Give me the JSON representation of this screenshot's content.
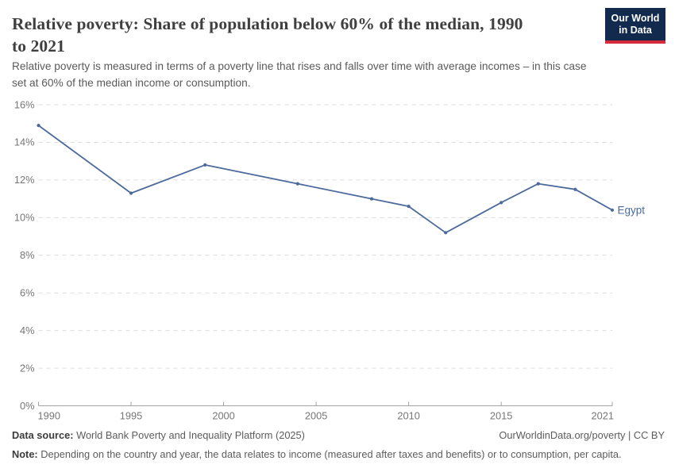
{
  "header": {
    "title_lines": [
      "Relative poverty: Share of population below 60% of the median, 1990",
      "to 2021"
    ],
    "subtitle_lines": [
      "Relative poverty is measured in terms of a poverty line that rises and falls over time with average incomes – in this case",
      "set at 60% of the median income or consumption."
    ],
    "logo_lines": [
      "Our World",
      "in Data"
    ]
  },
  "chart_data": {
    "type": "line",
    "title": "Relative poverty: Share of population below 60% of the median, 1990 to 2021",
    "series": [
      {
        "name": "Egypt",
        "color": "#4C6A9C",
        "x": [
          1990,
          1995,
          1999,
          2004,
          2008,
          2010,
          2012,
          2015,
          2017,
          2019,
          2021
        ],
        "values": [
          14.9,
          11.3,
          12.8,
          11.8,
          11.0,
          10.6,
          9.2,
          10.8,
          11.8,
          11.5,
          10.4
        ]
      }
    ],
    "xlabel": "",
    "ylabel": "",
    "xlim": [
      1990,
      2021
    ],
    "ylim": [
      0,
      16
    ],
    "x_ticks": [
      1990,
      1995,
      2000,
      2005,
      2010,
      2015,
      2021
    ],
    "y_ticks": [
      "0%",
      "2%",
      "4%",
      "6%",
      "8%",
      "10%",
      "12%",
      "14%",
      "16%"
    ],
    "grid": "horizontal-dashed",
    "legend_position": "line-end-label"
  },
  "footer": {
    "datasource_label": "Data source:",
    "datasource_text": "World Bank Poverty and Inequality Platform (2025)",
    "license_text": "OurWorldinData.org/poverty | CC BY",
    "note_label": "Note:",
    "note_text": "Depending on the country and year, the data relates to income (measured after taxes and benefits) or to consumption, per capita."
  },
  "colors": {
    "series_line": "#4C6A9C",
    "grid_line": "#dcdcdc",
    "axis_line": "#a3a3a3",
    "logo_background": "#122A4D",
    "logo_bar": "#D62B3A"
  }
}
